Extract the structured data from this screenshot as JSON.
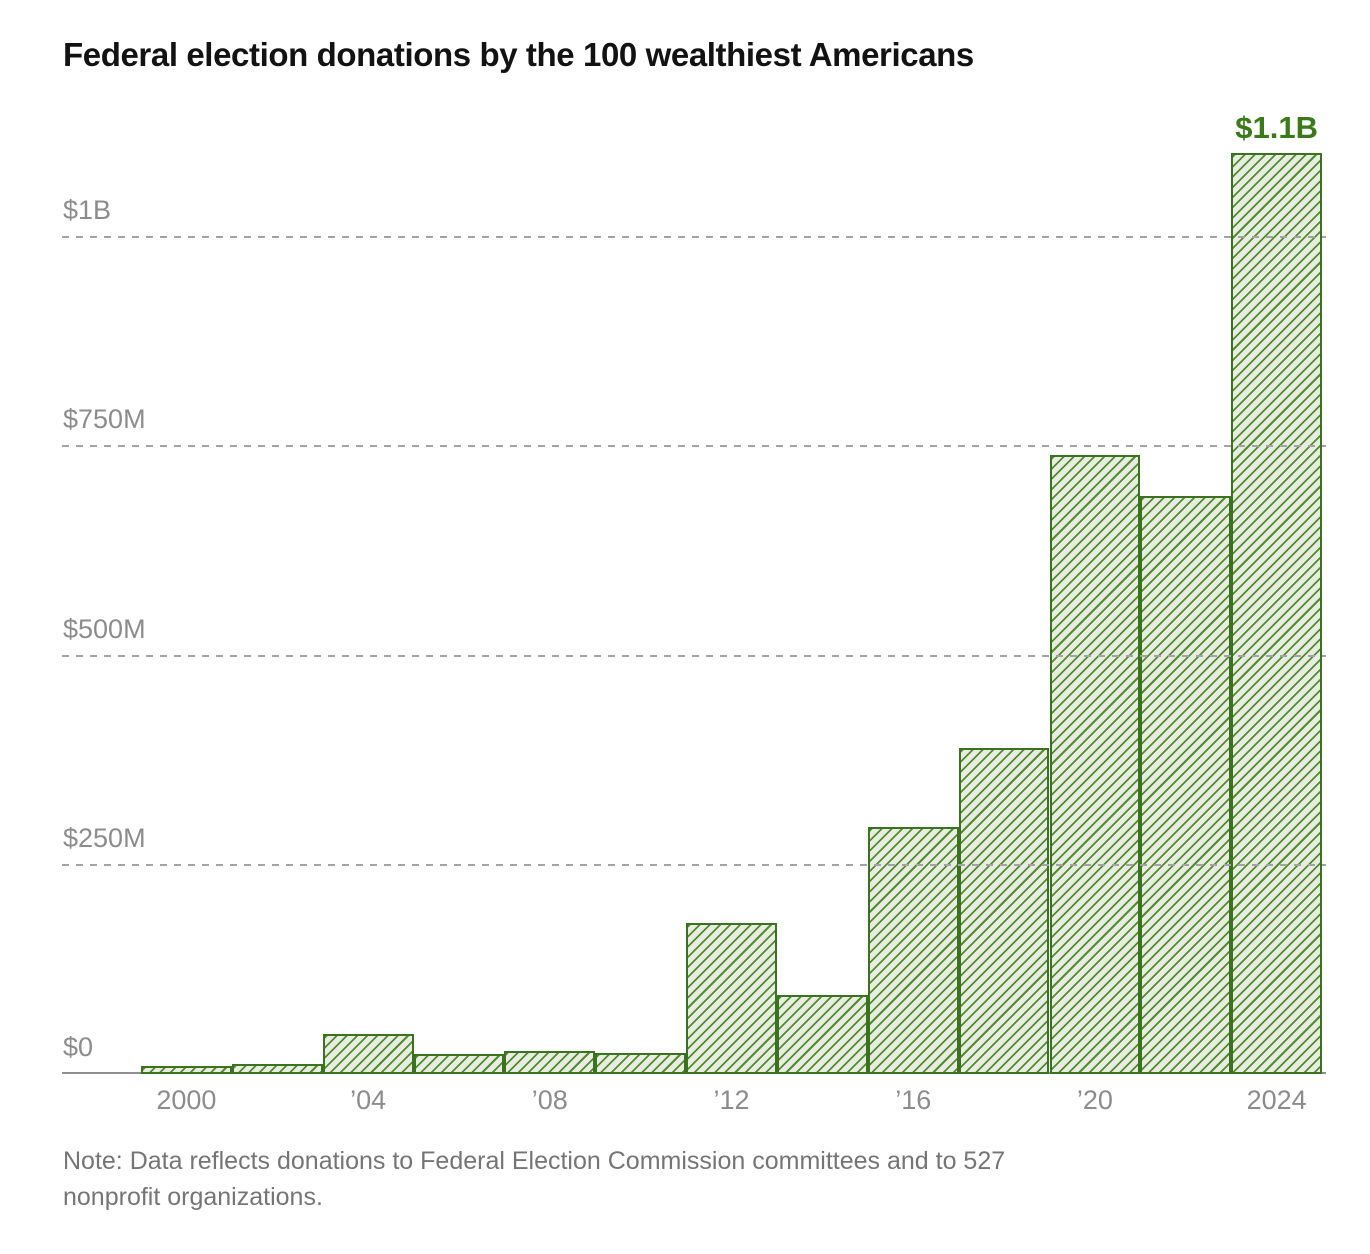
{
  "title": "Federal election donations by the 100 wealthiest Americans",
  "note": {
    "line1": "Note: Data reflects donations to Federal Election Commission committees and to 527",
    "line2": "nonprofit organizations."
  },
  "annotation": {
    "text": "$1.1B",
    "x": 2024
  },
  "colors": {
    "bar_fill": "#e9ece1",
    "bar_hatch": "#4f8d30",
    "bar_border": "#3b721f",
    "annotation_green": "#3a7a1a",
    "axis_line": "#8f8f8f",
    "gridline": "#a3a3a3",
    "tick_text": "#8c8c8c",
    "note_text": "#757575",
    "title_text": "#121212"
  },
  "chart_data": {
    "type": "bar",
    "title": "Federal election donations by the 100 wealthiest Americans",
    "x": [
      2000,
      2002,
      2004,
      2006,
      2008,
      2010,
      2012,
      2014,
      2016,
      2018,
      2020,
      2022,
      2024
    ],
    "values": [
      9,
      12,
      48,
      24,
      27,
      25,
      180,
      95,
      295,
      390,
      740,
      690,
      1100
    ],
    "unit": "million USD",
    "series_name": "Federal election donations by the 100 wealthiest Americans",
    "xlabel": "",
    "ylabel": "",
    "ylim": [
      0,
      1150
    ],
    "yticks": [
      {
        "value": 0,
        "label": "$0"
      },
      {
        "value": 250,
        "label": "$250M"
      },
      {
        "value": 500,
        "label": "$500M"
      },
      {
        "value": 750,
        "label": "$750M"
      },
      {
        "value": 1000,
        "label": "$1B"
      }
    ],
    "xticks": [
      {
        "x": 2000,
        "label": "2000"
      },
      {
        "x": 2004,
        "label": "’04"
      },
      {
        "x": 2008,
        "label": "’08"
      },
      {
        "x": 2012,
        "label": "’12"
      },
      {
        "x": 2016,
        "label": "’16"
      },
      {
        "x": 2020,
        "label": "’20"
      },
      {
        "x": 2024,
        "label": "2024"
      }
    ],
    "grid": "horizontal-dashed-over-bars",
    "legend": "none",
    "bar_label": {
      "x": 2024,
      "text": "$1.1B"
    }
  }
}
